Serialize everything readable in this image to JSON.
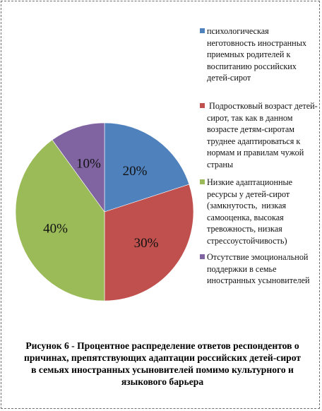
{
  "chart_data": {
    "type": "pie",
    "title": "",
    "categories": [
      "психологическая неготовность иностранных приемных родителей к воспитанию российских детей-сирот",
      " Подростковый возраст детей-сирот, так как в данном возрасте детям-сиротам труднее адаптироваться к нормам и правилам чужой страны",
      "Низкие адаптационные ресурсы у детей-сирот (замкнутость,  низкая самооценка, высокая тревожность, низкая стрессоустойчивость)",
      "Отсутствие эмоциональной поддержки в семье иностранных усыновителей"
    ],
    "values": [
      20,
      30,
      40,
      10
    ],
    "data_labels": [
      "20%",
      "30%",
      "40%",
      "10%"
    ],
    "colors": [
      "#4f81bd",
      "#c0504d",
      "#9bbb59",
      "#8064a2"
    ],
    "legend_position": "right",
    "start_angle_deg": 0,
    "direction": "clockwise"
  },
  "caption": "Рисунок 6 - Процентное распределение ответов респондентов о  причинах, препятствующих адаптации российских детей-сирот в семьях иностранных усыновителей помимо культурного и языкового барьера"
}
